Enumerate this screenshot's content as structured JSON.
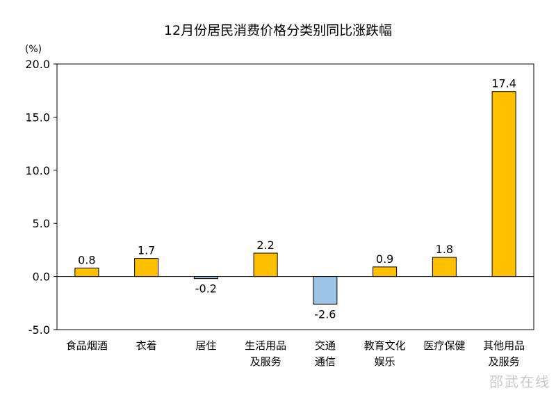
{
  "chart_data": {
    "type": "bar",
    "title": "12月份居民消费价格分类别同比涨跌幅",
    "unit_label": "(%)",
    "ylim": [
      -5.0,
      20.0
    ],
    "yticks": [
      "20.0",
      "15.0",
      "10.0",
      "5.0",
      "0.0",
      "-5.0"
    ],
    "ytick_values": [
      20,
      15,
      10,
      5,
      0,
      -5
    ],
    "categories": [
      [
        "食品烟酒"
      ],
      [
        "衣着"
      ],
      [
        "居住"
      ],
      [
        "生活用品",
        "及服务"
      ],
      [
        "交通",
        "通信"
      ],
      [
        "教育文化",
        "娱乐"
      ],
      [
        "医疗保健"
      ],
      [
        "其他用品",
        "及服务"
      ]
    ],
    "values": [
      0.8,
      1.7,
      -0.2,
      2.2,
      -2.6,
      0.9,
      1.8,
      17.4
    ],
    "value_labels": [
      "0.8",
      "1.7",
      "-0.2",
      "2.2",
      "-2.6",
      "0.9",
      "1.8",
      "17.4"
    ],
    "colors": {
      "positive": "#FFC000",
      "negative": "#9DC3E6",
      "bar_stroke": "#000000",
      "axis": "#000000"
    },
    "grid": false,
    "legend": "none"
  },
  "watermark": "邵武在线"
}
